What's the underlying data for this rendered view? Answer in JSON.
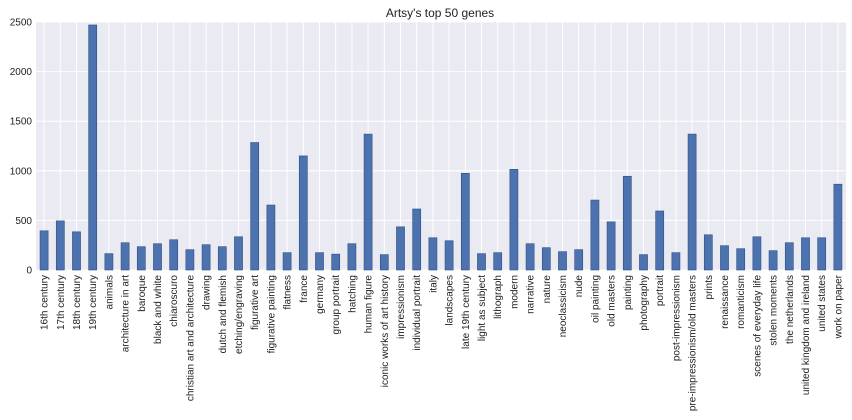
{
  "chart_data": {
    "type": "bar",
    "title": "Artsy's top 50 genes",
    "xlabel": "",
    "ylabel": "",
    "ylim": [
      0,
      2500
    ],
    "yticks": [
      "0",
      "500",
      "1000",
      "1500",
      "2000",
      "2500"
    ],
    "grid": true,
    "bar_color": "#4c72b0",
    "background_color": "#eaeaf2",
    "categories": [
      "16th century",
      "17th century",
      "18th century",
      "19th century",
      "animals",
      "architecture in art",
      "baroque",
      "black and white",
      "chiaroscuro",
      "christian art and architecture",
      "drawing",
      "dutch and flemish",
      "etching/engraving",
      "figurative art",
      "figurative painting",
      "flatness",
      "france",
      "germany",
      "group portrait",
      "hatching",
      "human figure",
      "iconic works of art history",
      "impressionism",
      "individual portrait",
      "italy",
      "landscapes",
      "late 19th century",
      "light as subject",
      "lithograph",
      "modern",
      "narrative",
      "nature",
      "neoclassicism",
      "nude",
      "oil painting",
      "old masters",
      "painting",
      "photography",
      "portrait",
      "post-impressionism",
      "pre-impressionism/old masters",
      "prints",
      "renaissance",
      "romanticism",
      "scenes of everyday life",
      "stolen moments",
      "the netherlands",
      "united kingdom and ireland",
      "united states",
      "work on paper"
    ],
    "values": [
      395,
      495,
      385,
      2470,
      165,
      275,
      235,
      265,
      305,
      205,
      255,
      235,
      335,
      1285,
      655,
      175,
      1150,
      175,
      160,
      265,
      1370,
      155,
      435,
      615,
      325,
      295,
      975,
      165,
      175,
      1015,
      265,
      225,
      185,
      205,
      705,
      485,
      945,
      155,
      595,
      175,
      1370,
      355,
      245,
      215,
      335,
      195,
      275,
      325,
      325,
      865
    ]
  }
}
